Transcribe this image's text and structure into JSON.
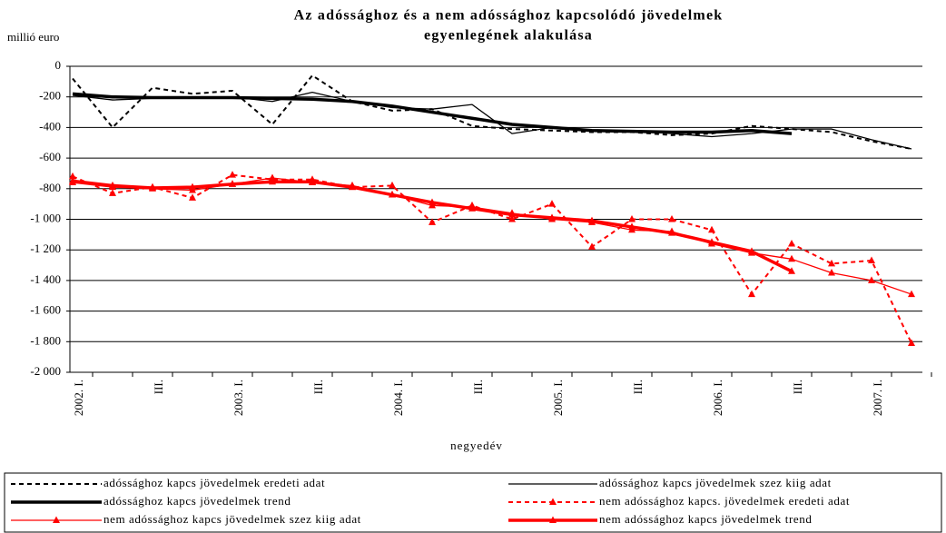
{
  "chart_data": {
    "type": "line",
    "title": [
      "Az adóssághoz  és a nem adóssághoz kapcsolódó jövedelmek",
      "egyenlegének alakulása"
    ],
    "y_label": "millió euro",
    "x_label": "negyedév",
    "categories": [
      "2002. I.",
      null,
      "III.",
      null,
      "2003. I.",
      null,
      "III.",
      null,
      "2004. I.",
      null,
      "III.",
      null,
      "2005. I.",
      null,
      "III.",
      null,
      "2006. I.",
      null,
      "III.",
      null,
      "2007. I.",
      null
    ],
    "ylim": [
      -2000,
      0
    ],
    "yticks": [
      0,
      -200,
      -400,
      -600,
      -800,
      {
        "value": -1000,
        "label": "-1 000"
      },
      {
        "value": -1200,
        "label": "-1 200"
      },
      {
        "value": -1400,
        "label": "-1 400"
      },
      {
        "value": -1600,
        "label": "-1 600"
      },
      {
        "value": -1800,
        "label": "-1 800"
      },
      {
        "value": -2000,
        "label": "-2 000"
      }
    ],
    "grid": true,
    "series": [
      {
        "name": "adóssághoz kapcs jövedelmek eredeti adat",
        "color": "#000000",
        "width": 2,
        "dash": true,
        "marker": null,
        "values": [
          -80,
          -400,
          -140,
          -180,
          -160,
          -380,
          -60,
          -230,
          -290,
          -280,
          -390,
          -410,
          -420,
          -430,
          -430,
          -450,
          -440,
          -390,
          -410,
          -430,
          -490,
          -540
        ]
      },
      {
        "name": "adóssághoz kapcs jövedelmek  szez kiig adat",
        "color": "#000000",
        "width": 1.3,
        "dash": false,
        "marker": null,
        "values": [
          -190,
          -220,
          -210,
          -200,
          -200,
          -230,
          -170,
          -230,
          -270,
          -280,
          -250,
          -440,
          -400,
          -420,
          -420,
          -440,
          -460,
          -440,
          -410,
          -410,
          -480,
          -540
        ]
      },
      {
        "name": "adóssághoz kapcs jövedelmek  trend",
        "color": "#000000",
        "width": 3.5,
        "dash": false,
        "marker": null,
        "values": [
          -180,
          -200,
          -205,
          -205,
          -205,
          -210,
          -215,
          -230,
          -260,
          -300,
          -340,
          -380,
          -400,
          -420,
          -425,
          -430,
          -430,
          -420,
          -440,
          null,
          null,
          null
        ]
      },
      {
        "name": "nem adóssághoz kapcs. jövedelmek  eredeti adat",
        "color": "#ff0000",
        "width": 2,
        "dash": true,
        "marker": "triangle",
        "values": [
          -720,
          -830,
          -790,
          -860,
          -710,
          -740,
          -740,
          -790,
          -780,
          -1020,
          -910,
          -1000,
          -900,
          -1180,
          -1000,
          -1000,
          -1070,
          -1490,
          -1160,
          -1290,
          -1270,
          -1810
        ]
      },
      {
        "name": "nem adóssághoz kapcs jövedelmek szez kiig adat",
        "color": "#ff0000",
        "width": 1.3,
        "dash": false,
        "marker": "triangle",
        "values": [
          -760,
          -790,
          -800,
          -810,
          -770,
          -730,
          -760,
          -780,
          -840,
          -910,
          -920,
          -960,
          -1000,
          -1020,
          -1070,
          -1080,
          -1160,
          -1220,
          -1260,
          -1350,
          -1400,
          -1490
        ]
      },
      {
        "name": "nem adóssághoz kapcs jövedelmek  trend",
        "color": "#ff0000",
        "width": 3.5,
        "dash": false,
        "marker": "triangle",
        "values": [
          -750,
          -780,
          -795,
          -790,
          -770,
          -755,
          -755,
          -790,
          -840,
          -890,
          -930,
          -970,
          -990,
          -1010,
          -1050,
          -1090,
          -1150,
          -1210,
          -1340,
          null,
          null,
          null
        ]
      }
    ]
  }
}
